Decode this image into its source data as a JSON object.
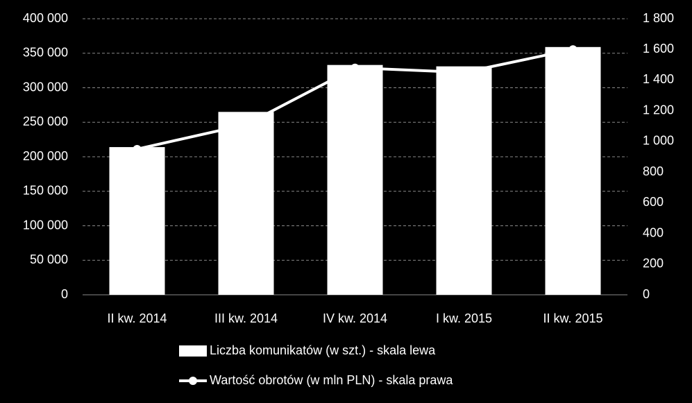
{
  "chart_data": {
    "type": "bar-line",
    "categories": [
      "II kw. 2014",
      "III kw. 2014",
      "IV kw. 2014",
      "I kw. 2015",
      "II kw. 2015"
    ],
    "series": [
      {
        "name": "Liczba komunikatów (w szt.) - skala lewa",
        "type": "bar",
        "color": "#ffffff",
        "values": [
          214000,
          265000,
          333000,
          331000,
          359000
        ]
      },
      {
        "name": "Wartość obrotów (w mln PLN) - skala prawa",
        "type": "line",
        "axis": "y2",
        "color": "#ffffff",
        "values": [
          950,
          1110,
          1480,
          1450,
          1600
        ]
      }
    ],
    "ylim": [
      0,
      400000
    ],
    "yticks": [
      0,
      {
        "value": 50000,
        "label": "50 000"
      },
      {
        "value": 100000,
        "label": "100 000"
      },
      {
        "value": 150000,
        "label": "150 000"
      },
      {
        "value": 200000,
        "label": "200 000"
      },
      {
        "value": 250000,
        "label": "250 000"
      },
      {
        "value": 300000,
        "label": "300 000"
      },
      {
        "value": 350000,
        "label": "350 000"
      },
      {
        "value": 400000,
        "label": "400 000"
      }
    ],
    "y2lim": [
      0,
      1800
    ],
    "y2ticks": [
      0,
      200,
      400,
      600,
      800,
      {
        "value": 1000,
        "label": "1 000"
      },
      {
        "value": 1200,
        "label": "1 200"
      },
      {
        "value": 1400,
        "label": "1 400"
      },
      {
        "value": 1600,
        "label": "1 600"
      },
      {
        "value": 1800,
        "label": "1 800"
      }
    ],
    "grid": true,
    "legend": "bottom"
  }
}
